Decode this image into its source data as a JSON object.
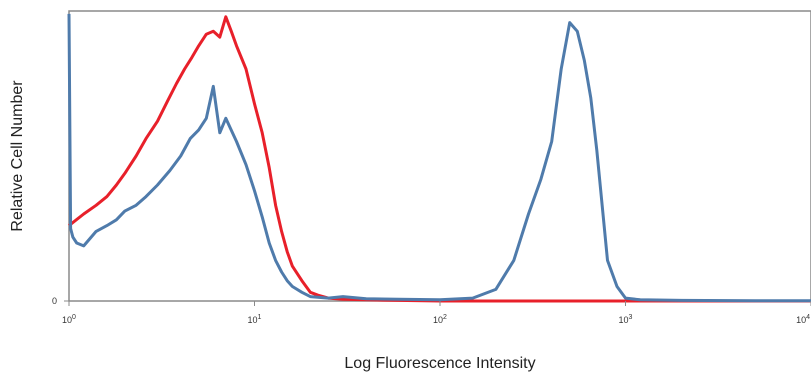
{
  "chart_data": {
    "type": "line",
    "title": "",
    "xlabel": "Log Fluorescence Intensity",
    "ylabel": "Relative Cell Number",
    "x_scale": "log",
    "xlim": [
      1,
      10000
    ],
    "ylim": [
      0,
      1.0
    ],
    "x_ticks": [
      {
        "value": 1,
        "base": "10",
        "exp": "0"
      },
      {
        "value": 10,
        "base": "10",
        "exp": "1"
      },
      {
        "value": 100,
        "base": "10",
        "exp": "2"
      },
      {
        "value": 1000,
        "base": "10",
        "exp": "3"
      },
      {
        "value": 10000,
        "base": "10",
        "exp": "4"
      }
    ],
    "y_ticks": [
      {
        "value": 0,
        "label": "0"
      }
    ],
    "grid": false,
    "legend": "none",
    "series": [
      {
        "color": "#e8202a",
        "x": [
          1.0,
          1.2,
          1.4,
          1.6,
          1.8,
          2.0,
          2.3,
          2.6,
          3.0,
          3.4,
          3.8,
          4.2,
          4.6,
          5.0,
          5.5,
          6.0,
          6.5,
          7.0,
          7.5,
          8.0,
          9.0,
          10.0,
          11.0,
          12.0,
          13.0,
          14.0,
          15.0,
          16.0,
          18.0,
          20.0,
          22.0,
          25.0,
          30.0,
          40.0,
          60.0,
          100.0,
          200.0,
          500.0,
          1000.0,
          10000.0
        ],
        "y": [
          0.26,
          0.3,
          0.33,
          0.36,
          0.4,
          0.44,
          0.5,
          0.56,
          0.62,
          0.69,
          0.75,
          0.8,
          0.84,
          0.88,
          0.92,
          0.93,
          0.91,
          0.98,
          0.93,
          0.88,
          0.8,
          0.68,
          0.58,
          0.46,
          0.33,
          0.24,
          0.17,
          0.12,
          0.07,
          0.03,
          0.02,
          0.01,
          0.006,
          0.004,
          0.002,
          0.0,
          0.0,
          0.0,
          0.0,
          0.0
        ]
      },
      {
        "color": "#4f7bab",
        "x": [
          1.0,
          1.02,
          1.05,
          1.1,
          1.2,
          1.4,
          1.6,
          1.8,
          2.0,
          2.3,
          2.6,
          3.0,
          3.5,
          4.0,
          4.5,
          5.0,
          5.5,
          6.0,
          6.5,
          7.0,
          8.0,
          9.0,
          10.0,
          11.0,
          12.0,
          13.0,
          14.0,
          15.0,
          16.0,
          18.0,
          20.0,
          25.0,
          30.0,
          40.0,
          60.0,
          100.0,
          150.0,
          200.0,
          250.0,
          300.0,
          350.0,
          400.0,
          450.0,
          500.0,
          550.0,
          600.0,
          650.0,
          700.0,
          800.0,
          900.0,
          1000.0,
          1200.0,
          2000.0,
          5000.0,
          10000.0
        ],
        "y": [
          0.99,
          0.25,
          0.22,
          0.2,
          0.19,
          0.24,
          0.26,
          0.28,
          0.31,
          0.33,
          0.36,
          0.4,
          0.45,
          0.5,
          0.56,
          0.59,
          0.63,
          0.74,
          0.58,
          0.63,
          0.55,
          0.47,
          0.38,
          0.29,
          0.2,
          0.14,
          0.1,
          0.07,
          0.05,
          0.03,
          0.015,
          0.01,
          0.015,
          0.008,
          0.006,
          0.004,
          0.01,
          0.04,
          0.14,
          0.3,
          0.42,
          0.55,
          0.8,
          0.96,
          0.93,
          0.83,
          0.7,
          0.52,
          0.14,
          0.05,
          0.01,
          0.004,
          0.002,
          0.001,
          0.001
        ]
      }
    ]
  }
}
